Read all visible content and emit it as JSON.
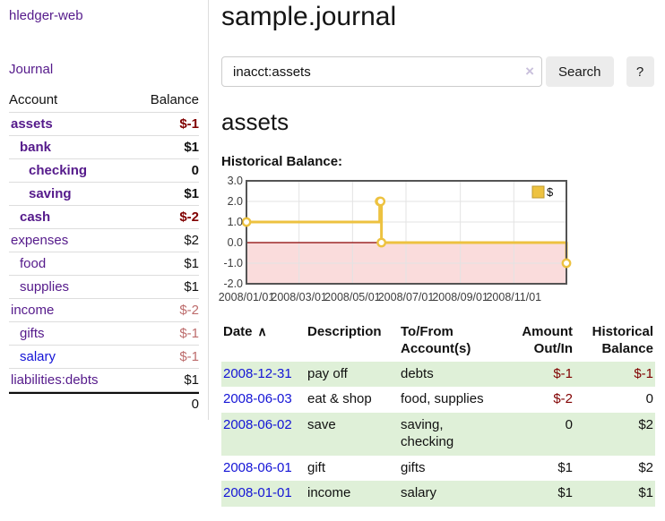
{
  "sidebar": {
    "app_title": "hledger-web",
    "journal_link": "Journal",
    "accounts": {
      "header_account": "Account",
      "header_balance": "Balance",
      "rows": [
        {
          "label": "assets",
          "depth": 1,
          "emph": true,
          "balance": "$-1"
        },
        {
          "label": "bank",
          "depth": 2,
          "emph": true,
          "balance": "$1"
        },
        {
          "label": "checking",
          "depth": 3,
          "emph": true,
          "balance": "0"
        },
        {
          "label": "saving",
          "depth": 3,
          "emph": true,
          "balance": "$1"
        },
        {
          "label": "cash",
          "depth": 2,
          "emph": true,
          "balance": "$-2"
        },
        {
          "label": "expenses",
          "depth": 1,
          "emph": false,
          "balance": "$2"
        },
        {
          "label": "food",
          "depth": 2,
          "emph": false,
          "balance": "$1"
        },
        {
          "label": "supplies",
          "depth": 2,
          "emph": false,
          "balance": "$1"
        },
        {
          "label": "income",
          "depth": 1,
          "emph": false,
          "balance": "$-2"
        },
        {
          "label": "gifts",
          "depth": 2,
          "emph": false,
          "balance": "$-1"
        },
        {
          "label": "salary",
          "depth": 2,
          "emph": false,
          "balance": "$-1",
          "unvisited": true
        },
        {
          "label": "liabilities:debts",
          "depth": 1,
          "emph": false,
          "balance": "$1"
        }
      ],
      "total": "0"
    }
  },
  "main": {
    "title": "sample.journal",
    "search": {
      "value": "inacct:assets",
      "clear_icon": "×",
      "button_label": "Search",
      "help_label": "?"
    },
    "account_heading": "assets",
    "chart_title": "Historical Balance:",
    "register": {
      "headers": {
        "date": "Date",
        "sort_icon": "∧",
        "description": "Description",
        "accounts": "To/From Account(s)",
        "amount": "Amount Out/In",
        "balance": "Historical Balance"
      },
      "rows": [
        {
          "date": "2008-12-31",
          "description": "pay off",
          "accounts": "debts",
          "amount": "$-1",
          "balance": "$-1"
        },
        {
          "date": "2008-06-03",
          "description": "eat & shop",
          "accounts": "food, supplies",
          "amount": "$-2",
          "balance": "0"
        },
        {
          "date": "2008-06-02",
          "description": "save",
          "accounts": "saving, checking",
          "amount": "0",
          "balance": "$2"
        },
        {
          "date": "2008-06-01",
          "description": "gift",
          "accounts": "gifts",
          "amount": "$1",
          "balance": "$2"
        },
        {
          "date": "2008-01-01",
          "description": "income",
          "accounts": "salary",
          "amount": "$1",
          "balance": "$1"
        }
      ]
    }
  },
  "chart_data": {
    "type": "line",
    "step": true,
    "title": "Historical Balance",
    "series": [
      {
        "name": "$",
        "color": "#edc240",
        "points": [
          [
            "2008-01-01",
            1
          ],
          [
            "2008-06-01",
            2
          ],
          [
            "2008-06-02",
            2
          ],
          [
            "2008-06-03",
            0
          ],
          [
            "2008-12-31",
            -1
          ]
        ]
      }
    ],
    "x_ticks": [
      "2008/01/01",
      "2008/03/01",
      "2008/05/01",
      "2008/07/01",
      "2008/09/01",
      "2008/11/01"
    ],
    "y_ticks": [
      3.0,
      2.0,
      1.0,
      0.0,
      -1.0,
      -2.0
    ],
    "xlim": [
      "2008-01-01",
      "2008-12-31"
    ],
    "ylim": [
      -2,
      3
    ],
    "grid": true,
    "legend_position": "top-right",
    "negative_region_color": "#fadcdc",
    "zero_line_color": "#8b0000",
    "grid_color": "#e3e3e3",
    "border_color": "#545454",
    "tick_label_color": "#3c3c3c"
  },
  "colors": {
    "link_purple": "#551a8b",
    "link_blue": "#1414d6",
    "negative_dark": "#800000",
    "negative_soft": "#bd6c6c",
    "row_green": "#dff0d8",
    "series_gold": "#edc240"
  }
}
